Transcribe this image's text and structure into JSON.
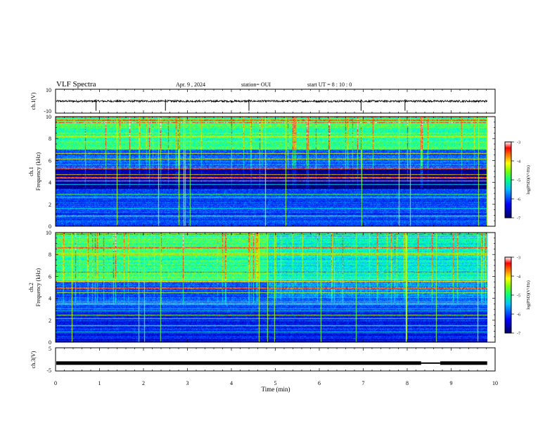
{
  "header": {
    "title": "VLF Spectra",
    "date": "Apr. 9 , 2024",
    "station": "station= OUI",
    "start": "start UT = 8 : 10 : 0"
  },
  "chart_data": [
    {
      "id": "ch1-waveform",
      "type": "line",
      "ylabel": "ch.1(V)",
      "ylim": [
        -10,
        10
      ],
      "yticks": [
        "10",
        "-10"
      ],
      "baseline": 0,
      "spike_times": [
        0.92,
        2.5,
        4.4,
        6.95,
        7.95
      ],
      "xlim": [
        0,
        10
      ]
    },
    {
      "id": "ch1-spectrogram",
      "type": "heatmap",
      "ylabel": "ch.1 Frequency (kHz)",
      "ylim": [
        0,
        10
      ],
      "yticks": [
        "0",
        "2",
        "4",
        "6",
        "8",
        "10"
      ],
      "xlim": [
        0,
        10
      ],
      "data_extent_x": [
        0,
        9.82
      ],
      "colorbar": {
        "label": "log(PSD)(V²/Hz)",
        "range": [
          -7,
          -3
        ],
        "ticks": [
          "-3",
          "-4",
          "-5",
          "-6",
          "-7"
        ]
      }
    },
    {
      "id": "ch2-spectrogram",
      "type": "heatmap",
      "ylabel": "ch.2 Frequency (kHz)",
      "ylim": [
        0,
        10
      ],
      "yticks": [
        "0",
        "2",
        "4",
        "6",
        "8",
        "10"
      ],
      "xlim": [
        0,
        10
      ],
      "data_extent_x": [
        0,
        9.82
      ],
      "colorbar": {
        "label": "log(PSD)(V²/Hz)",
        "range": [
          -7,
          -3
        ],
        "ticks": [
          "-3",
          "-4",
          "-5",
          "-6",
          "-7"
        ]
      }
    },
    {
      "id": "ch3-waveform",
      "type": "line",
      "ylabel": "ch.3(V)",
      "ylim": [
        -5,
        5
      ],
      "yticks": [
        "5",
        "-5"
      ],
      "baseline": -1.6,
      "gap": [
        8.3,
        8.75
      ],
      "xlim": [
        0,
        10
      ]
    }
  ],
  "xaxis": {
    "label": "Time (min)",
    "ticks": [
      "0",
      "1",
      "2",
      "3",
      "4",
      "5",
      "6",
      "7",
      "8",
      "9",
      "10"
    ]
  },
  "colors": {
    "colormap": [
      "#000060",
      "#0000ff",
      "#00aaff",
      "#00ffcc",
      "#55ff55",
      "#ffff00",
      "#ff8000",
      "#ff0000",
      "#ffffff"
    ]
  }
}
